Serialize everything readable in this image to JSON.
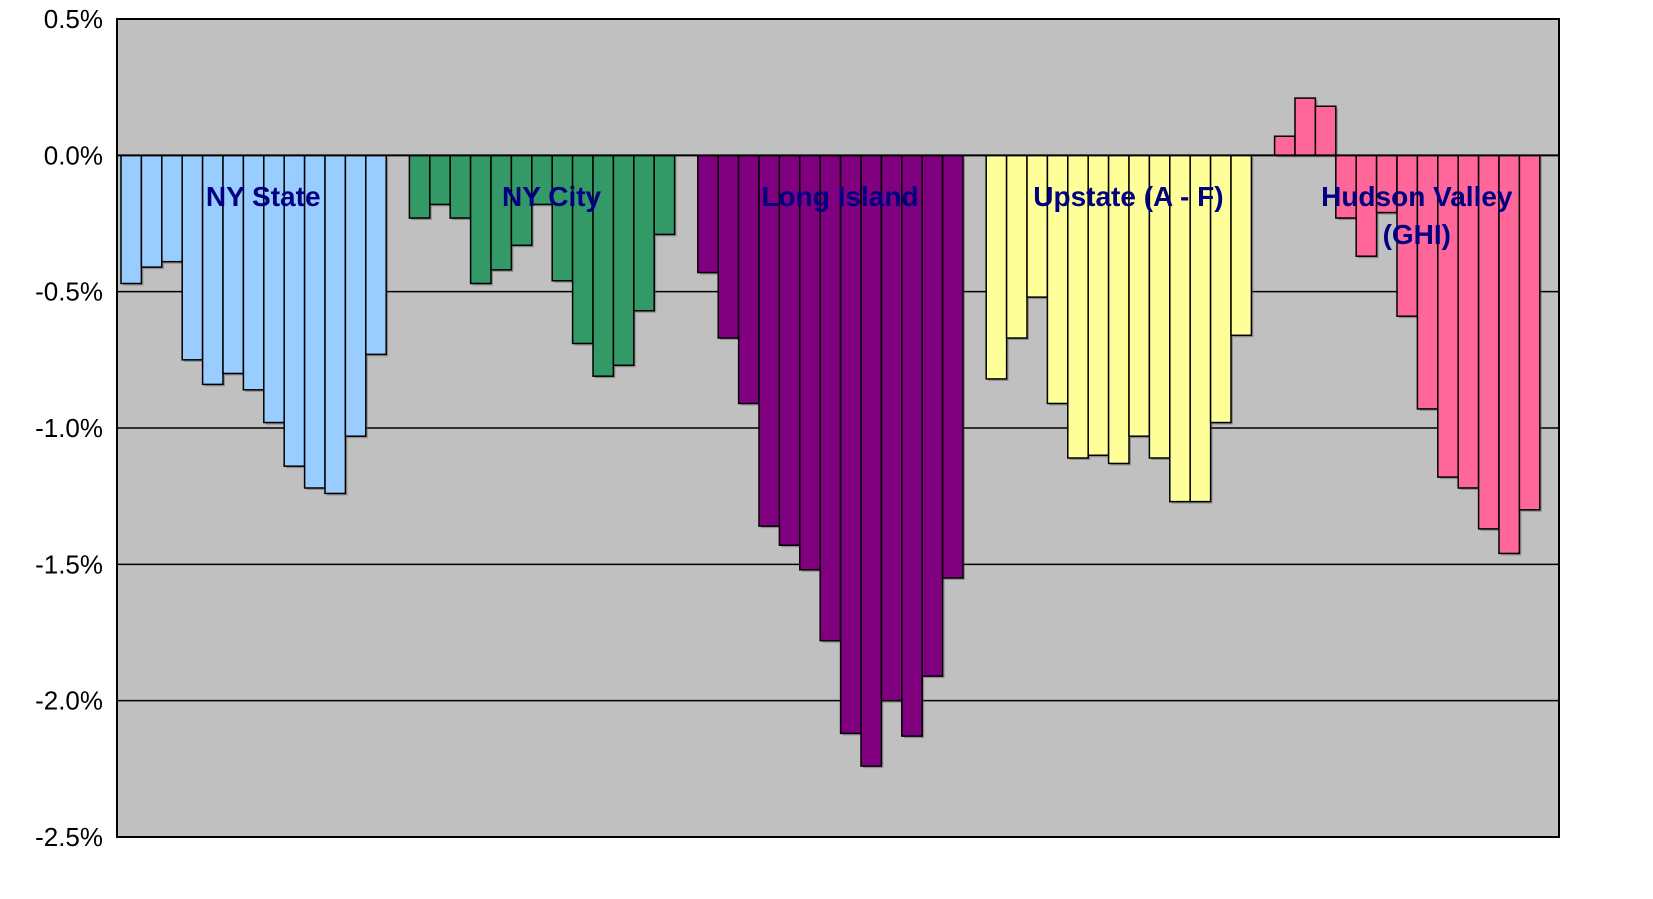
{
  "chart_data": {
    "type": "bar",
    "title": "",
    "xlabel": "",
    "ylabel": "",
    "ylim": [
      -2.5,
      0.5
    ],
    "y_ticks": [
      {
        "value": 0.5,
        "label": "0.5%"
      },
      {
        "value": 0.0,
        "label": "0.0%"
      },
      {
        "value": -0.5,
        "label": "-0.5%"
      },
      {
        "value": -1.0,
        "label": "-1.0%"
      },
      {
        "value": -1.5,
        "label": "-1.5%"
      },
      {
        "value": -2.0,
        "label": "-2.0%"
      },
      {
        "value": -2.5,
        "label": "-2.5%"
      }
    ],
    "grid": true,
    "plot_background": "#c0c0c0",
    "series": [
      {
        "label_lines": [
          "NY State"
        ],
        "color": "#99ccff",
        "values": [
          -0.47,
          -0.41,
          -0.39,
          -0.75,
          -0.84,
          -0.8,
          -0.86,
          -0.98,
          -1.14,
          -1.22,
          -1.24,
          -1.03,
          -0.73
        ]
      },
      {
        "label_lines": [
          "NY City"
        ],
        "color": "#339966",
        "values": [
          -0.23,
          -0.18,
          -0.23,
          -0.47,
          -0.42,
          -0.33,
          -0.18,
          -0.46,
          -0.69,
          -0.81,
          -0.77,
          -0.57,
          -0.29
        ]
      },
      {
        "label_lines": [
          "Long Island"
        ],
        "color": "#800080",
        "values": [
          -0.43,
          -0.67,
          -0.91,
          -1.36,
          -1.43,
          -1.52,
          -1.78,
          -2.12,
          -2.24,
          -2.0,
          -2.13,
          -1.91,
          -1.55
        ]
      },
      {
        "label_lines": [
          "Upstate (A - F)"
        ],
        "color": "#ffff99",
        "values": [
          -0.82,
          -0.67,
          -0.52,
          -0.91,
          -1.11,
          -1.1,
          -1.13,
          -1.03,
          -1.11,
          -1.27,
          -1.27,
          -0.98,
          -0.66
        ]
      },
      {
        "label_lines": [
          "Hudson Valley",
          "(GHI)"
        ],
        "color": "#ff6699",
        "values": [
          0.07,
          0.21,
          0.18,
          -0.23,
          -0.37,
          -0.21,
          -0.59,
          -0.93,
          -1.18,
          -1.22,
          -1.37,
          -1.46,
          -1.3
        ]
      }
    ]
  }
}
